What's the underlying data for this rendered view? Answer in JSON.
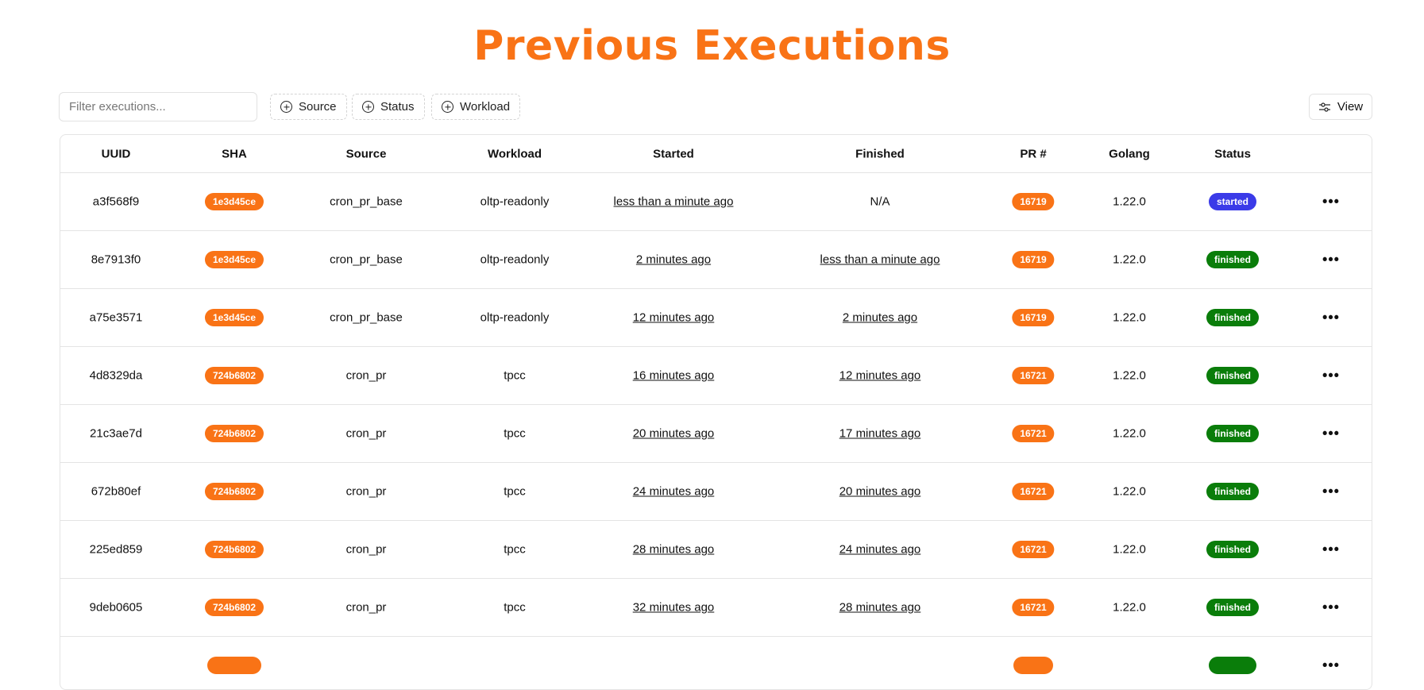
{
  "title": "Previous Executions",
  "toolbar": {
    "filter_placeholder": "Filter executions...",
    "filters": [
      "Source",
      "Status",
      "Workload"
    ],
    "view_label": "View"
  },
  "colors": {
    "accent": "#f97316",
    "started": "#3b3be8",
    "finished": "#0a7d0a"
  },
  "table": {
    "headers": [
      "UUID",
      "SHA",
      "Source",
      "Workload",
      "Started",
      "Finished",
      "PR #",
      "Golang",
      "Status"
    ],
    "rows": [
      [
        "a3f568f9",
        "1e3d45ce",
        "cron_pr_base",
        "oltp-readonly",
        "less than a minute ago",
        "N/A",
        "16719",
        "1.22.0",
        "started"
      ],
      [
        "8e7913f0",
        "1e3d45ce",
        "cron_pr_base",
        "oltp-readonly",
        "2 minutes ago",
        "less than a minute ago",
        "16719",
        "1.22.0",
        "finished"
      ],
      [
        "a75e3571",
        "1e3d45ce",
        "cron_pr_base",
        "oltp-readonly",
        "12 minutes ago",
        "2 minutes ago",
        "16719",
        "1.22.0",
        "finished"
      ],
      [
        "4d8329da",
        "724b6802",
        "cron_pr",
        "tpcc",
        "16 minutes ago",
        "12 minutes ago",
        "16721",
        "1.22.0",
        "finished"
      ],
      [
        "21c3ae7d",
        "724b6802",
        "cron_pr",
        "tpcc",
        "20 minutes ago",
        "17 minutes ago",
        "16721",
        "1.22.0",
        "finished"
      ],
      [
        "672b80ef",
        "724b6802",
        "cron_pr",
        "tpcc",
        "24 minutes ago",
        "20 minutes ago",
        "16721",
        "1.22.0",
        "finished"
      ],
      [
        "225ed859",
        "724b6802",
        "cron_pr",
        "tpcc",
        "28 minutes ago",
        "24 minutes ago",
        "16721",
        "1.22.0",
        "finished"
      ],
      [
        "9deb0605",
        "724b6802",
        "cron_pr",
        "tpcc",
        "32 minutes ago",
        "28 minutes ago",
        "16721",
        "1.22.0",
        "finished"
      ]
    ]
  }
}
